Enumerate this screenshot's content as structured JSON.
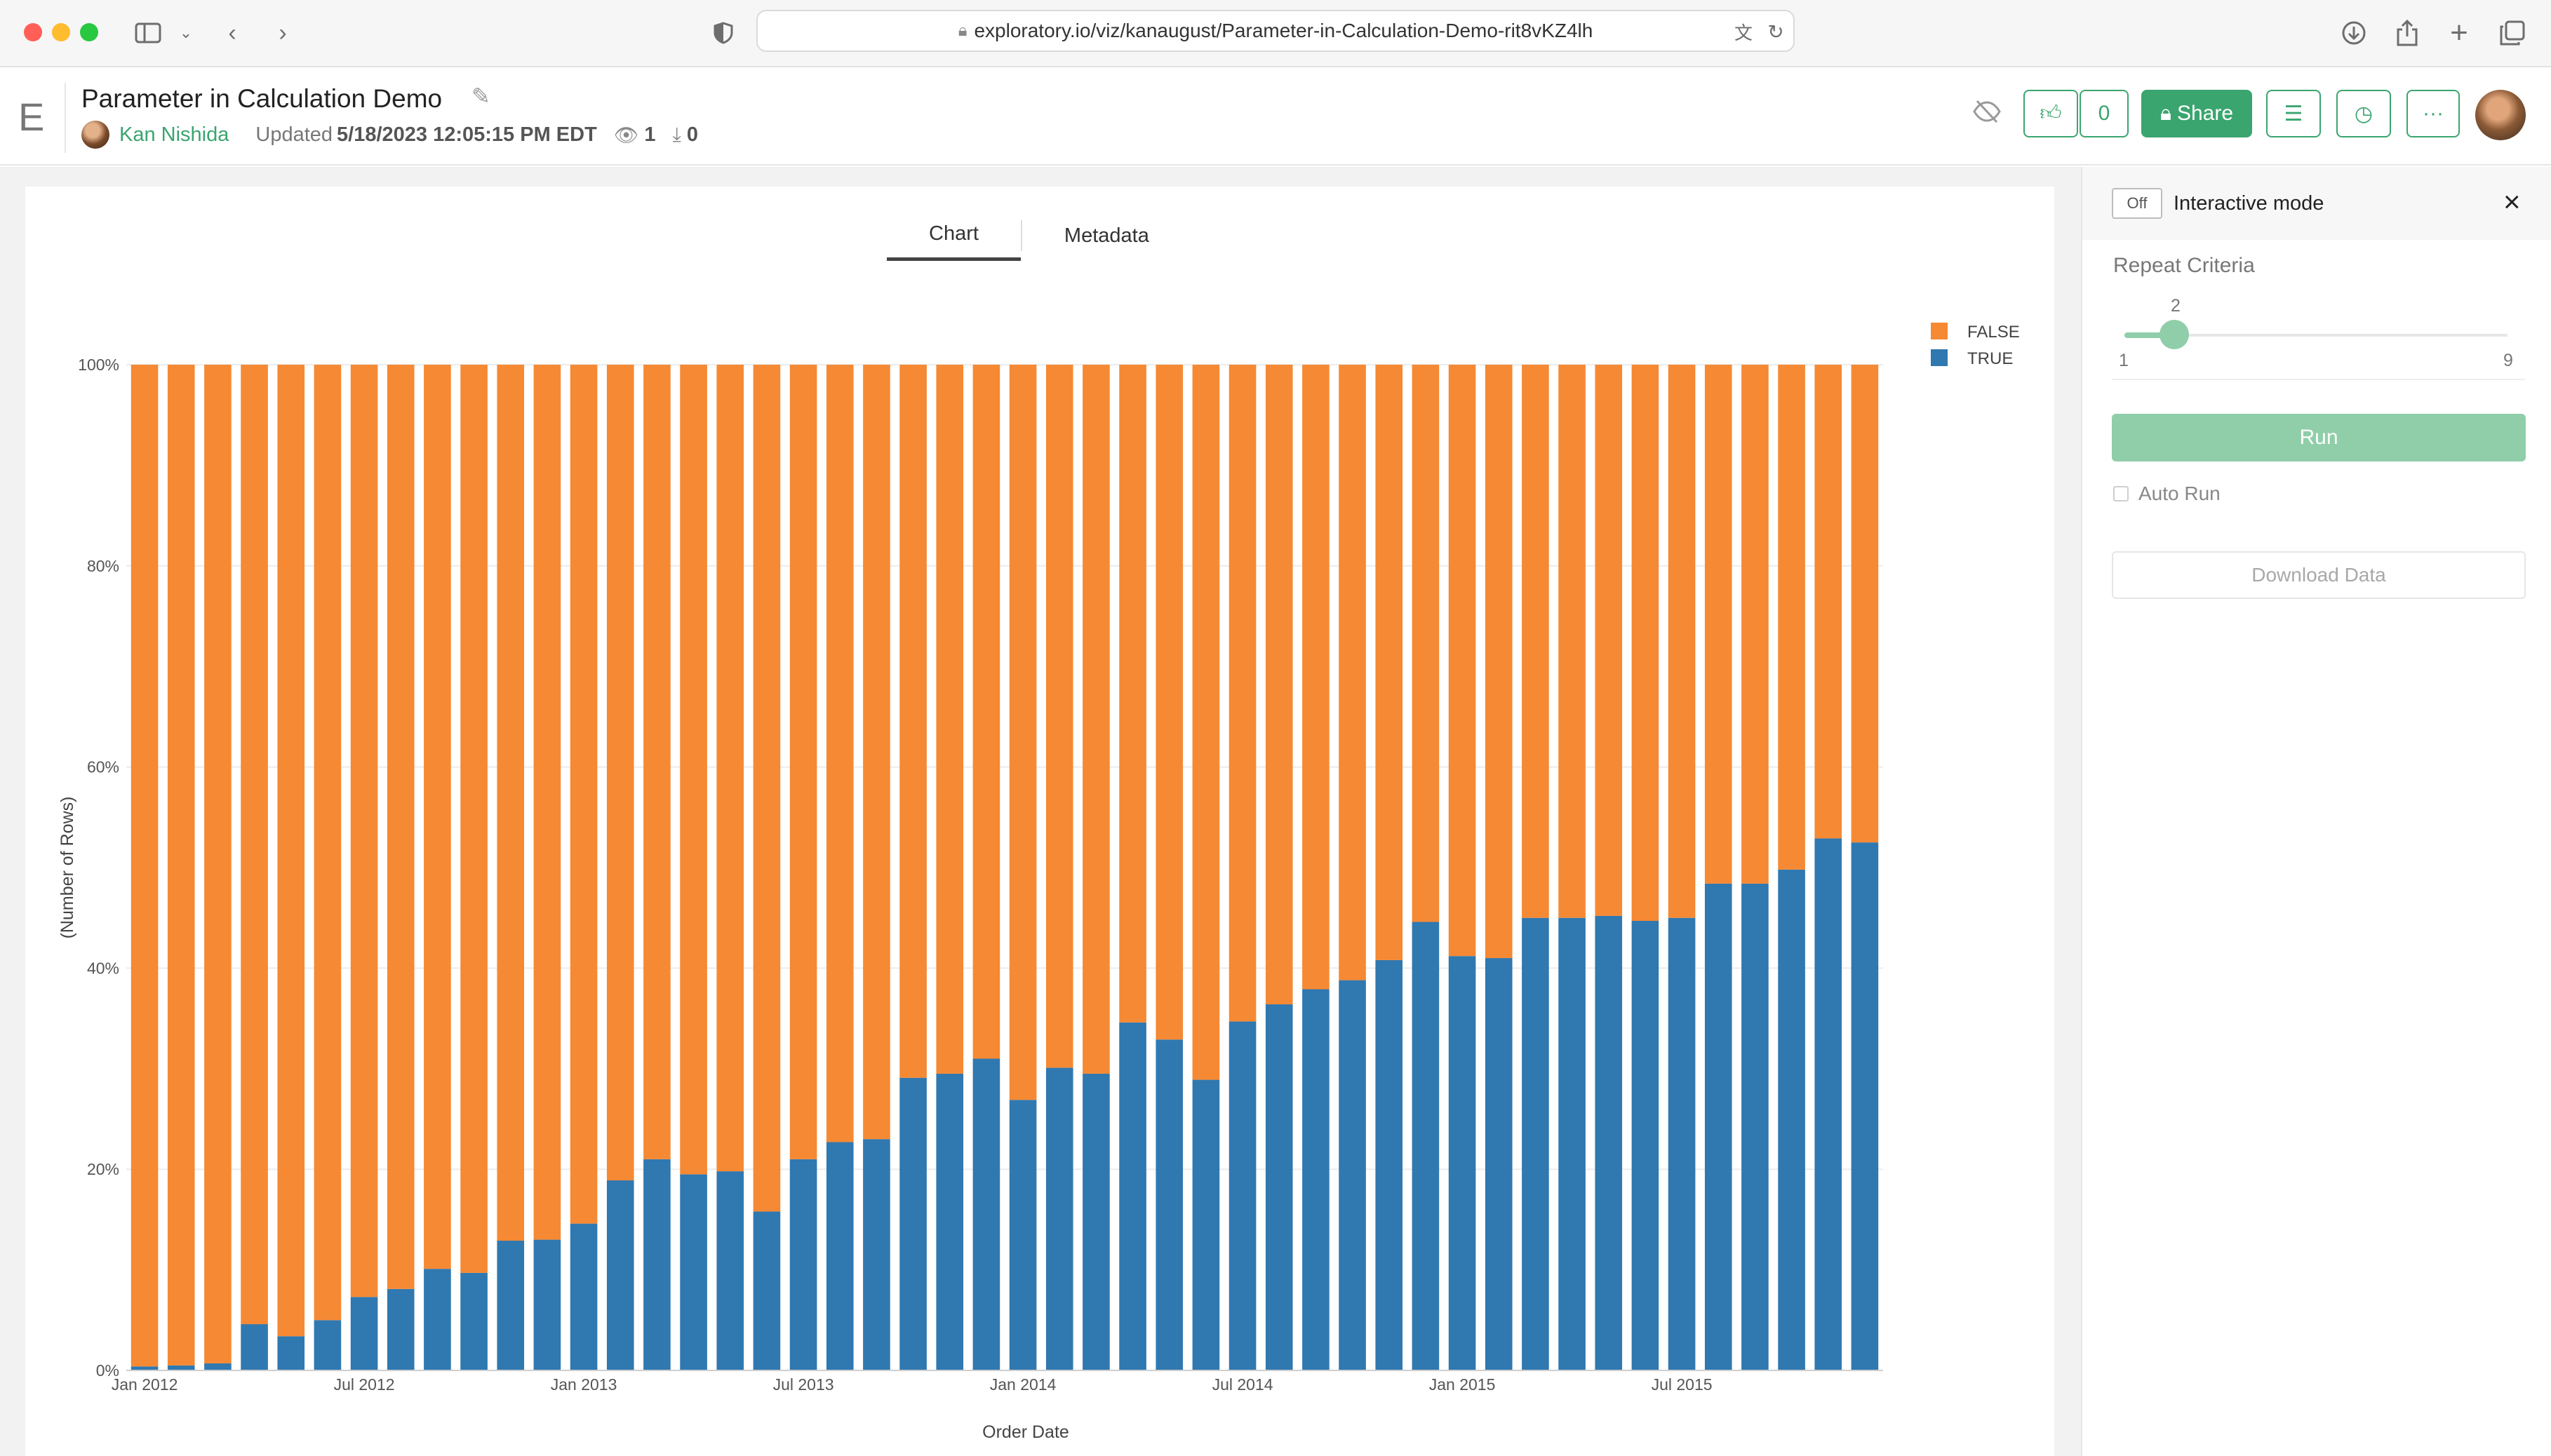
{
  "browser": {
    "url": "exploratory.io/viz/kanaugust/Parameter-in-Calculation-Demo-rit8vKZ4lh"
  },
  "header": {
    "logo": "E",
    "title": "Parameter in Calculation Demo",
    "author": "Kan Nishida",
    "updated_label": "Updated",
    "updated_value": "5/18/2023 12:05:15 PM EDT",
    "views": "1",
    "downloads": "0",
    "likes": "0",
    "share_label": "Share"
  },
  "tabs": [
    "Chart",
    "Metadata"
  ],
  "chart_data": {
    "type": "bar",
    "stacked": "percent",
    "xlabel": "Order Date",
    "ylabel": "(Number of Rows)",
    "ylim": [
      0,
      100
    ],
    "y_ticks": [
      "0%",
      "20%",
      "40%",
      "60%",
      "80%",
      "100%"
    ],
    "x_ticks": [
      "Jan 2012",
      "Jul 2012",
      "Jan 2013",
      "Jul 2013",
      "Jan 2014",
      "Jul 2014",
      "Jan 2015",
      "Jul 2015"
    ],
    "legend_position": "top-right",
    "categories": [
      "2012-01",
      "2012-02",
      "2012-03",
      "2012-04",
      "2012-05",
      "2012-06",
      "2012-07",
      "2012-08",
      "2012-09",
      "2012-10",
      "2012-11",
      "2012-12",
      "2013-01",
      "2013-02",
      "2013-03",
      "2013-04",
      "2013-05",
      "2013-06",
      "2013-07",
      "2013-08",
      "2013-09",
      "2013-10",
      "2013-11",
      "2013-12",
      "2014-01",
      "2014-02",
      "2014-03",
      "2014-04",
      "2014-05",
      "2014-06",
      "2014-07",
      "2014-08",
      "2014-09",
      "2014-10",
      "2014-11",
      "2014-12",
      "2015-01",
      "2015-02",
      "2015-03",
      "2015-04",
      "2015-05",
      "2015-06",
      "2015-07",
      "2015-08",
      "2015-09",
      "2015-10",
      "2015-11",
      "2015-12"
    ],
    "series": [
      {
        "name": "TRUE",
        "color": "#3078b0",
        "values": [
          0.4,
          0.5,
          0.7,
          4.6,
          3.4,
          5.0,
          7.3,
          8.1,
          10.1,
          9.7,
          12.9,
          13.0,
          14.6,
          18.9,
          21.0,
          19.5,
          19.8,
          15.8,
          21.0,
          22.7,
          23.0,
          29.1,
          29.5,
          31.0,
          26.9,
          30.1,
          29.5,
          34.6,
          32.9,
          28.9,
          34.7,
          36.4,
          37.9,
          38.8,
          40.8,
          44.6,
          41.2,
          41.0,
          45.0,
          45.0,
          45.2,
          44.7,
          45.0,
          48.4,
          48.4,
          49.8,
          52.9,
          52.5
        ]
      },
      {
        "name": "FALSE",
        "color": "#f68933",
        "values": [
          99.6,
          99.5,
          99.3,
          95.4,
          96.6,
          95.0,
          92.7,
          91.9,
          89.9,
          90.3,
          87.1,
          87.0,
          85.4,
          81.1,
          79.0,
          80.5,
          80.2,
          84.2,
          79.0,
          77.3,
          77.0,
          70.9,
          70.5,
          69.0,
          73.1,
          69.9,
          70.5,
          65.4,
          67.1,
          71.1,
          65.3,
          63.6,
          62.1,
          61.2,
          59.2,
          55.4,
          58.8,
          59.0,
          55.0,
          55.0,
          54.8,
          55.3,
          55.0,
          51.6,
          51.6,
          50.2,
          47.1,
          47.5
        ]
      }
    ]
  },
  "panel": {
    "toggle_label": "Off",
    "interactive_label": "Interactive mode",
    "close_icon": "×",
    "param_label": "Repeat Criteria",
    "slider_value": "2",
    "slider_min": "1",
    "slider_max": "9",
    "slider_fraction": 0.125,
    "run_label": "Run",
    "auto_run_label": "Auto Run",
    "download_label": "Download Data"
  }
}
